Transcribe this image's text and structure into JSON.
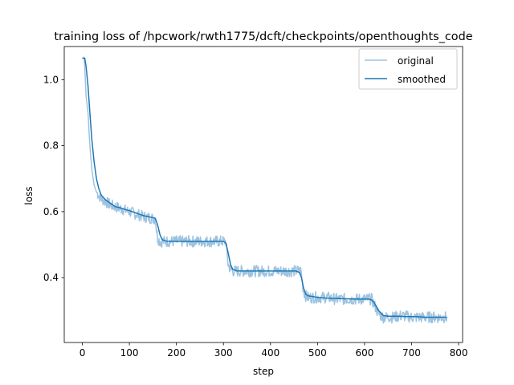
{
  "chart_data": {
    "type": "line",
    "title": "training loss of /hpcwork/rwth1775/dcft/checkpoints/openthoughts_code",
    "xlabel": "step",
    "ylabel": "loss",
    "xlim": [
      -38.5,
      808.5
    ],
    "ylim": [
      0.2035,
      1.1005
    ],
    "xticks": [
      0,
      100,
      200,
      300,
      400,
      500,
      600,
      700,
      800
    ],
    "yticks": [
      0.4,
      0.6,
      0.8,
      1.0
    ],
    "xtick_labels": [
      "0",
      "100",
      "200",
      "300",
      "400",
      "500",
      "600",
      "700",
      "800"
    ],
    "ytick_labels": [
      "0.4",
      "0.6",
      "0.8",
      "1.0"
    ],
    "grid": false,
    "legend": {
      "position": "upper right",
      "entries": [
        "original",
        "smoothed"
      ]
    },
    "series": [
      {
        "name": "original",
        "color": "#9dc3e0",
        "points": [
          [
            0,
            1.065
          ],
          [
            4,
            1.068
          ],
          [
            8,
            0.95
          ],
          [
            12,
            0.9
          ],
          [
            16,
            0.8
          ],
          [
            20,
            0.73
          ],
          [
            25,
            0.68
          ],
          [
            30,
            0.66
          ],
          [
            35,
            0.65
          ],
          [
            40,
            0.64
          ],
          [
            45,
            0.635
          ],
          [
            50,
            0.63
          ],
          [
            60,
            0.62
          ],
          [
            70,
            0.615
          ],
          [
            80,
            0.61
          ],
          [
            90,
            0.605
          ],
          [
            100,
            0.6
          ],
          [
            110,
            0.595
          ],
          [
            120,
            0.59
          ],
          [
            130,
            0.585
          ],
          [
            140,
            0.582
          ],
          [
            150,
            0.58
          ],
          [
            155,
            0.578
          ],
          [
            160,
            0.52
          ],
          [
            165,
            0.51
          ],
          [
            170,
            0.51
          ],
          [
            180,
            0.51
          ],
          [
            200,
            0.51
          ],
          [
            220,
            0.51
          ],
          [
            250,
            0.51
          ],
          [
            280,
            0.51
          ],
          [
            300,
            0.51
          ],
          [
            305,
            0.51
          ],
          [
            310,
            0.44
          ],
          [
            315,
            0.425
          ],
          [
            320,
            0.42
          ],
          [
            340,
            0.42
          ],
          [
            360,
            0.42
          ],
          [
            380,
            0.42
          ],
          [
            400,
            0.42
          ],
          [
            420,
            0.42
          ],
          [
            440,
            0.42
          ],
          [
            460,
            0.42
          ],
          [
            465,
            0.42
          ],
          [
            470,
            0.36
          ],
          [
            475,
            0.345
          ],
          [
            480,
            0.34
          ],
          [
            500,
            0.34
          ],
          [
            520,
            0.34
          ],
          [
            540,
            0.335
          ],
          [
            560,
            0.335
          ],
          [
            580,
            0.335
          ],
          [
            600,
            0.335
          ],
          [
            615,
            0.335
          ],
          [
            620,
            0.32
          ],
          [
            630,
            0.29
          ],
          [
            640,
            0.28
          ],
          [
            660,
            0.28
          ],
          [
            680,
            0.285
          ],
          [
            700,
            0.28
          ],
          [
            720,
            0.28
          ],
          [
            740,
            0.28
          ],
          [
            760,
            0.28
          ],
          [
            775,
            0.28
          ]
        ]
      },
      {
        "name": "smoothed",
        "color": "#1f77b4",
        "points": [
          [
            0,
            1.065
          ],
          [
            5,
            1.065
          ],
          [
            8,
            1.04
          ],
          [
            12,
            0.98
          ],
          [
            16,
            0.9
          ],
          [
            20,
            0.82
          ],
          [
            25,
            0.75
          ],
          [
            30,
            0.7
          ],
          [
            35,
            0.67
          ],
          [
            40,
            0.65
          ],
          [
            50,
            0.635
          ],
          [
            60,
            0.625
          ],
          [
            70,
            0.615
          ],
          [
            80,
            0.612
          ],
          [
            90,
            0.607
          ],
          [
            100,
            0.603
          ],
          [
            110,
            0.598
          ],
          [
            120,
            0.593
          ],
          [
            130,
            0.588
          ],
          [
            140,
            0.585
          ],
          [
            150,
            0.582
          ],
          [
            155,
            0.58
          ],
          [
            160,
            0.56
          ],
          [
            165,
            0.53
          ],
          [
            170,
            0.515
          ],
          [
            180,
            0.51
          ],
          [
            200,
            0.51
          ],
          [
            220,
            0.51
          ],
          [
            250,
            0.51
          ],
          [
            280,
            0.51
          ],
          [
            300,
            0.51
          ],
          [
            305,
            0.505
          ],
          [
            310,
            0.475
          ],
          [
            315,
            0.44
          ],
          [
            320,
            0.425
          ],
          [
            330,
            0.42
          ],
          [
            350,
            0.42
          ],
          [
            380,
            0.42
          ],
          [
            400,
            0.42
          ],
          [
            420,
            0.42
          ],
          [
            440,
            0.42
          ],
          [
            455,
            0.42
          ],
          [
            462,
            0.415
          ],
          [
            466,
            0.4
          ],
          [
            470,
            0.37
          ],
          [
            475,
            0.35
          ],
          [
            480,
            0.345
          ],
          [
            500,
            0.34
          ],
          [
            520,
            0.338
          ],
          [
            540,
            0.337
          ],
          [
            560,
            0.336
          ],
          [
            580,
            0.335
          ],
          [
            600,
            0.335
          ],
          [
            610,
            0.335
          ],
          [
            615,
            0.332
          ],
          [
            620,
            0.325
          ],
          [
            630,
            0.3
          ],
          [
            640,
            0.285
          ],
          [
            650,
            0.283
          ],
          [
            670,
            0.283
          ],
          [
            690,
            0.282
          ],
          [
            710,
            0.282
          ],
          [
            730,
            0.28
          ],
          [
            750,
            0.28
          ],
          [
            765,
            0.28
          ],
          [
            775,
            0.28
          ]
        ]
      }
    ]
  }
}
